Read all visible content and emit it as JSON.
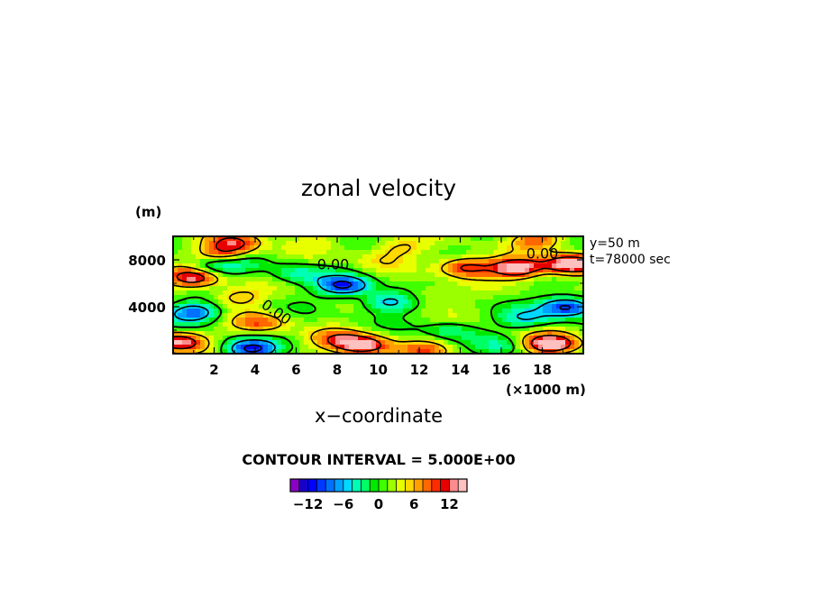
{
  "chart_data": {
    "type": "heatmap",
    "title": "zonal velocity",
    "xlabel": "x−coordinate",
    "ylabel": "",
    "y_unit": "(m)",
    "x_unit": "(×1000 m)",
    "annotation_lines": [
      "y=50 m",
      "t=78000 sec"
    ],
    "contour_interval_text": "CONTOUR INTERVAL = 5.000E+00",
    "xlim": [
      0,
      20
    ],
    "ylim": [
      0,
      10000
    ],
    "x_ticks": [
      2,
      4,
      6,
      8,
      10,
      12,
      14,
      16,
      18
    ],
    "x_tick_labels": [
      "2",
      "4",
      "6",
      "8",
      "10",
      "12",
      "14",
      "16",
      "18"
    ],
    "y_ticks": [
      4000,
      8000
    ],
    "y_tick_labels": [
      "4000",
      "8000"
    ],
    "contour_labels": [
      "0.00",
      "0.00",
      "0.00"
    ],
    "colorbar": {
      "min": -15,
      "max": 15,
      "step": 1.5,
      "tick_values": [
        -12,
        -6,
        0,
        6,
        12
      ],
      "tick_labels": [
        "−12",
        "−6",
        "0",
        "6",
        "12"
      ]
    },
    "features": [
      {
        "x": 1.0,
        "y": 6.5,
        "value": 12
      },
      {
        "x": 2.5,
        "y": 8.5,
        "value": 8
      },
      {
        "x": 3.0,
        "y": 9.5,
        "value": 8
      },
      {
        "x": 1.8,
        "y": 7.3,
        "value": -5
      },
      {
        "x": 6.0,
        "y": 6.8,
        "value": -5
      },
      {
        "x": 3.0,
        "y": 7.8,
        "value": -4
      },
      {
        "x": 8.3,
        "y": 5.8,
        "value": -12
      },
      {
        "x": 10.5,
        "y": 4.4,
        "value": -8
      },
      {
        "x": 9.2,
        "y": 0.7,
        "value": 13
      },
      {
        "x": 8.0,
        "y": 1.2,
        "value": 6
      },
      {
        "x": 1.0,
        "y": 3.5,
        "value": -10
      },
      {
        "x": 0.2,
        "y": 1.0,
        "value": 12
      },
      {
        "x": 3.8,
        "y": 0.4,
        "value": -12
      },
      {
        "x": 4.2,
        "y": 2.6,
        "value": 7
      },
      {
        "x": 3.1,
        "y": 4.8,
        "value": 5
      },
      {
        "x": 14.3,
        "y": 7.4,
        "value": 10
      },
      {
        "x": 16.8,
        "y": 7.3,
        "value": 14
      },
      {
        "x": 19.4,
        "y": 7.6,
        "value": 15
      },
      {
        "x": 17.8,
        "y": 9.7,
        "value": 7
      },
      {
        "x": 19.2,
        "y": 4.0,
        "value": -13
      },
      {
        "x": 17.2,
        "y": 3.0,
        "value": -6
      },
      {
        "x": 13.5,
        "y": 2.0,
        "value": -4
      },
      {
        "x": 16.0,
        "y": 0.6,
        "value": -4
      },
      {
        "x": 18.4,
        "y": 0.8,
        "value": 15
      },
      {
        "x": 12.2,
        "y": 0.3,
        "value": 6
      },
      {
        "x": 12.5,
        "y": 5.0,
        "value": 3
      },
      {
        "x": 7.0,
        "y": 9.6,
        "value": 2
      },
      {
        "x": 11.0,
        "y": 9.0,
        "value": 4
      },
      {
        "x": 10.0,
        "y": 8.0,
        "value": 2
      }
    ],
    "grid": false,
    "legend": "bottom"
  },
  "colors": {
    "palette": [
      "#8a00c8",
      "#1800c8",
      "#0000ff",
      "#0038ff",
      "#0070ff",
      "#00a0ff",
      "#00d8ff",
      "#00ffb4",
      "#00ff64",
      "#00e800",
      "#40ff00",
      "#9cff00",
      "#e8ff00",
      "#ffd800",
      "#ffa000",
      "#ff6800",
      "#ff2c00",
      "#e60000",
      "#ff8c8c",
      "#ffc0c0"
    ]
  }
}
